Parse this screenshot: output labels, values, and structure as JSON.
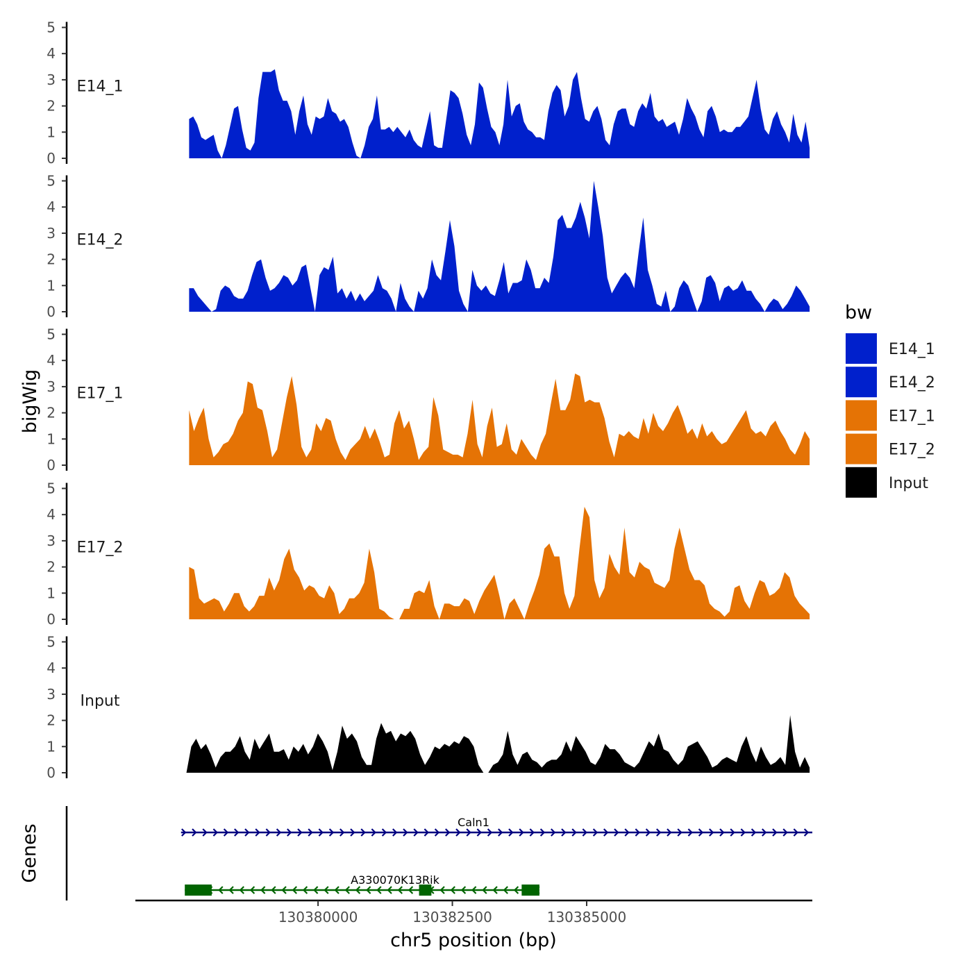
{
  "colors": {
    "E14_1": "#0020CC",
    "E14_2": "#0020CC",
    "E17_1": "#E57305",
    "E17_2": "#E57305",
    "Input": "#000000",
    "gene_caln1": "#000080",
    "gene_a330070": "#006400"
  },
  "chart_data": {
    "type": "area",
    "ylabel": "bigWig",
    "genes_label": "Genes",
    "xlabel": "chr5 position (bp)",
    "xlim": [
      130376600,
      130389200
    ],
    "ylim": [
      0,
      5
    ],
    "y_ticks": [
      "0",
      "1",
      "2",
      "3",
      "4",
      "5"
    ],
    "x_ticks": [
      {
        "value": 130380000,
        "label": "130380000"
      },
      {
        "value": 130382500,
        "label": "130382500"
      },
      {
        "value": 130385000,
        "label": "130385000"
      }
    ],
    "legend": {
      "title": "bw",
      "items": [
        "E14_1",
        "E14_2",
        "E17_1",
        "E17_2",
        "Input"
      ]
    },
    "series": [
      {
        "name": "E14_1",
        "x_start": 130377600,
        "x_end": 130389150,
        "values": [
          1.5,
          1.6,
          1.3,
          0.8,
          0.7,
          0.8,
          0.9,
          0.3,
          0,
          0.5,
          1.2,
          1.9,
          2.0,
          1.1,
          0.4,
          0.3,
          0.6,
          2.3,
          3.3,
          3.3,
          3.3,
          3.4,
          2.6,
          2.2,
          2.2,
          1.8,
          0.9,
          1.8,
          2.4,
          1.3,
          0.9,
          1.6,
          1.5,
          1.6,
          2.3,
          1.8,
          1.7,
          1.4,
          1.5,
          1.2,
          0.6,
          0.1,
          0,
          0.5,
          1.2,
          1.5,
          2.4,
          1.1,
          1.1,
          1.2,
          1.0,
          1.2,
          1.0,
          0.8,
          1.1,
          0.7,
          0.5,
          0.4,
          1.1,
          1.8,
          0.5,
          0.4,
          0.4,
          1.5,
          2.6,
          2.5,
          2.3,
          1.7,
          0.9,
          0.5,
          1.3,
          2.9,
          2.7,
          1.9,
          1.2,
          1.0,
          0.5,
          1.3,
          3.0,
          1.6,
          2.0,
          2.1,
          1.4,
          1.1,
          1.0,
          0.8,
          0.8,
          0.7,
          1.8,
          2.5,
          2.8,
          2.6,
          1.6,
          2.0,
          3.0,
          3.3,
          2.3,
          1.5,
          1.4,
          1.8,
          2.0,
          1.5,
          0.7,
          0.5,
          1.3,
          1.8,
          1.9,
          1.9,
          1.3,
          1.2,
          1.8,
          2.1,
          1.9,
          2.5,
          1.6,
          1.4,
          1.5,
          1.2,
          1.3,
          1.4,
          0.9,
          1.5,
          2.3,
          1.9,
          1.6,
          1.1,
          0.8,
          1.8,
          2.0,
          1.6,
          1.0,
          1.1,
          1.0,
          1.0,
          1.2,
          1.2,
          1.4,
          1.6,
          2.3,
          3.0,
          1.9,
          1.1,
          0.9,
          1.5,
          1.8,
          1.3,
          1.0,
          0.6,
          1.7,
          0.9,
          0.6,
          1.4,
          0.4
        ]
      },
      {
        "name": "E14_2",
        "x_start": 130377600,
        "x_end": 130389150,
        "values": [
          0.9,
          0.9,
          0.6,
          0.4,
          0.2,
          0,
          0.1,
          0.8,
          1.0,
          0.9,
          0.6,
          0.5,
          0.5,
          0.8,
          1.4,
          1.9,
          2.0,
          1.3,
          0.8,
          0.9,
          1.1,
          1.4,
          1.3,
          1.0,
          1.2,
          1.7,
          1.8,
          0.9,
          0,
          1.4,
          1.7,
          1.6,
          2.1,
          0.7,
          0.9,
          0.5,
          0.8,
          0.4,
          0.7,
          0.4,
          0.6,
          0.8,
          1.4,
          0.9,
          0.8,
          0.5,
          0,
          1.1,
          0.5,
          0.2,
          0,
          0.8,
          0.5,
          0.9,
          2.0,
          1.4,
          1.2,
          2.3,
          3.5,
          2.5,
          0.8,
          0.3,
          0,
          1.6,
          1.0,
          0.8,
          1.0,
          0.7,
          0.6,
          1.2,
          1.9,
          0.7,
          1.1,
          1.1,
          1.2,
          2.0,
          1.6,
          0.9,
          0.9,
          1.3,
          1.1,
          2.1,
          3.5,
          3.7,
          3.2,
          3.2,
          3.6,
          4.2,
          3.6,
          2.8,
          5.0,
          4.0,
          2.9,
          1.3,
          0.7,
          1.0,
          1.3,
          1.5,
          1.3,
          0.9,
          2.3,
          3.6,
          1.6,
          1.0,
          0.3,
          0.2,
          0.8,
          0,
          0.2,
          0.9,
          1.2,
          1.0,
          0.5,
          0,
          0.4,
          1.3,
          1.4,
          1.1,
          0.4,
          0.9,
          1.0,
          0.8,
          0.9,
          1.2,
          0.8,
          0.8,
          0.5,
          0.3,
          0,
          0.3,
          0.5,
          0.4,
          0.1,
          0.3,
          0.6,
          1.0,
          0.8,
          0.5,
          0.2
        ]
      },
      {
        "name": "E17_1",
        "x_start": 130377600,
        "x_end": 130389150,
        "values": [
          2.1,
          1.3,
          1.8,
          2.2,
          1.0,
          0.3,
          0.5,
          0.8,
          0.9,
          1.2,
          1.7,
          2.0,
          3.2,
          3.1,
          2.2,
          2.1,
          1.3,
          0.3,
          0.6,
          1.6,
          2.6,
          3.4,
          2.3,
          0.7,
          0.3,
          0.6,
          1.6,
          1.3,
          1.8,
          1.7,
          1.0,
          0.5,
          0.2,
          0.6,
          0.8,
          1.0,
          1.5,
          1.0,
          1.4,
          0.9,
          0.3,
          0.4,
          1.6,
          2.1,
          1.4,
          1.7,
          1.0,
          0.2,
          0.5,
          0.7,
          2.6,
          1.9,
          0.6,
          0.5,
          0.4,
          0.4,
          0.3,
          1.2,
          2.5,
          0.8,
          0.3,
          1.5,
          2.2,
          0.7,
          0.8,
          1.6,
          0.6,
          0.4,
          1.0,
          0.7,
          0.4,
          0.2,
          0.8,
          1.2,
          2.3,
          3.3,
          2.1,
          2.1,
          2.5,
          3.5,
          3.4,
          2.4,
          2.5,
          2.4,
          2.4,
          1.8,
          0.9,
          0.3,
          1.2,
          1.1,
          1.3,
          1.1,
          1.0,
          1.8,
          1.2,
          2.0,
          1.5,
          1.3,
          1.6,
          2.0,
          2.3,
          1.8,
          1.2,
          1.4,
          1.0,
          1.6,
          1.1,
          1.3,
          1.0,
          0.8,
          0.9,
          1.2,
          1.5,
          1.8,
          2.1,
          1.4,
          1.2,
          1.3,
          1.1,
          1.5,
          1.7,
          1.3,
          1.0,
          0.6,
          0.4,
          0.8,
          1.3,
          1.0
        ]
      },
      {
        "name": "E17_2",
        "x_start": 130377600,
        "x_end": 130389150,
        "values": [
          2.0,
          1.9,
          0.8,
          0.6,
          0.7,
          0.8,
          0.7,
          0.3,
          0.6,
          1.0,
          1.0,
          0.5,
          0.3,
          0.5,
          0.9,
          0.9,
          1.6,
          1.1,
          1.5,
          2.3,
          2.7,
          1.9,
          1.6,
          1.1,
          1.3,
          1.2,
          0.9,
          0.8,
          1.3,
          1.0,
          0.2,
          0.4,
          0.8,
          0.8,
          1.0,
          1.4,
          2.7,
          1.8,
          0.4,
          0.3,
          0.1,
          0,
          0,
          0.4,
          0.4,
          1.0,
          1.1,
          1.0,
          1.5,
          0.5,
          0,
          0.6,
          0.6,
          0.5,
          0.5,
          0.8,
          0.7,
          0.2,
          0.7,
          1.1,
          1.4,
          1.7,
          0.9,
          0,
          0.6,
          0.8,
          0.4,
          0,
          0.6,
          1.1,
          1.7,
          2.7,
          2.9,
          2.4,
          2.4,
          1.0,
          0.4,
          0.9,
          2.7,
          4.3,
          3.9,
          1.5,
          0.8,
          1.2,
          2.5,
          2.0,
          1.7,
          3.5,
          1.8,
          1.6,
          2.2,
          2.0,
          1.9,
          1.4,
          1.3,
          1.2,
          1.5,
          2.7,
          3.5,
          2.7,
          1.9,
          1.5,
          1.5,
          1.3,
          0.6,
          0.4,
          0.3,
          0.1,
          0.3,
          1.2,
          1.3,
          0.7,
          0.4,
          1.0,
          1.5,
          1.4,
          0.9,
          1.0,
          1.2,
          1.8,
          1.6,
          0.9,
          0.6,
          0.4,
          0.2
        ]
      },
      {
        "name": "Input",
        "x_start": 130377550,
        "x_end": 130389150,
        "values": [
          0,
          1.0,
          1.3,
          0.9,
          1.1,
          0.7,
          0.2,
          0.6,
          0.8,
          0.8,
          1.0,
          1.4,
          0.8,
          0.5,
          1.3,
          0.9,
          1.2,
          1.5,
          0.8,
          0.8,
          0.9,
          0.5,
          1.0,
          0.8,
          1.1,
          0.7,
          1.0,
          1.5,
          1.2,
          0.8,
          0.1,
          0.8,
          1.8,
          1.3,
          1.5,
          1.2,
          0.6,
          0.3,
          0.3,
          1.3,
          1.9,
          1.5,
          1.6,
          1.2,
          1.5,
          1.4,
          1.6,
          1.3,
          0.7,
          0.3,
          0.6,
          1.0,
          0.9,
          1.1,
          1.0,
          1.2,
          1.1,
          1.4,
          1.3,
          1.0,
          0.3,
          0,
          0,
          0.3,
          0.4,
          0.7,
          1.6,
          0.7,
          0.3,
          0.7,
          0.8,
          0.5,
          0.4,
          0.2,
          0.4,
          0.5,
          0.5,
          0.7,
          1.2,
          0.8,
          1.4,
          1.1,
          0.8,
          0.4,
          0.3,
          0.6,
          1.1,
          0.9,
          0.9,
          0.7,
          0.4,
          0.3,
          0.2,
          0.4,
          0.8,
          1.2,
          1.0,
          1.5,
          0.9,
          0.8,
          0.5,
          0.3,
          0.5,
          1.0,
          1.1,
          1.2,
          0.9,
          0.6,
          0.2,
          0.3,
          0.5,
          0.6,
          0.5,
          0.4,
          1.0,
          1.4,
          0.8,
          0.4,
          1.0,
          0.6,
          0.3,
          0.4,
          0.6,
          0.3,
          2.2,
          0.8,
          0.2,
          0.6,
          0.2
        ]
      }
    ],
    "genes": [
      {
        "name": "Caln1",
        "start": 130377450,
        "end": 130389200,
        "strand": "+",
        "exons": []
      },
      {
        "name": "A330070K13Rik",
        "start": 130377520,
        "end": 130384120,
        "strand": "-",
        "exons": [
          [
            130377520,
            130378020
          ],
          [
            130381880,
            130382110
          ],
          [
            130383790,
            130384120
          ]
        ]
      }
    ]
  }
}
